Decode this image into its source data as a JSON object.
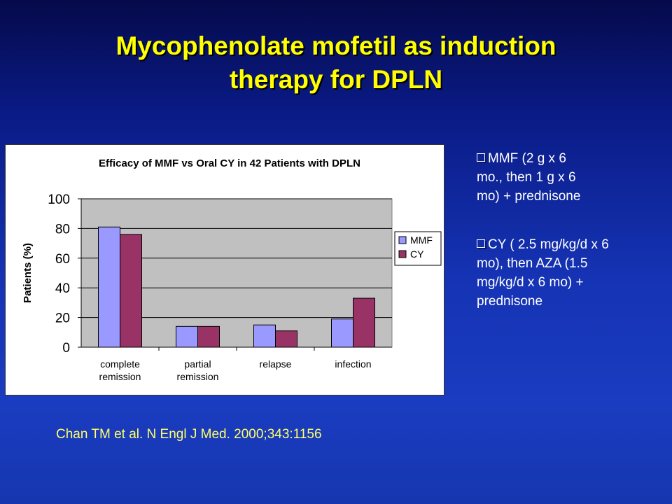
{
  "slide": {
    "title_line1": "Mycophenolate mofetil as induction",
    "title_line2": "therapy for DPLN",
    "citation": "Chan TM et al. N Engl J Med. 2000;343:1156"
  },
  "bullets": [
    {
      "lines": [
        "MMF (2 g x 6",
        "mo., then 1 g x 6",
        "mo) + prednisone"
      ]
    },
    {
      "lines": [
        "CY ( 2.5 mg/kg/d x 6",
        "mo), then AZA (1.5",
        "mg/kg/d x 6 mo) +",
        "prednisone"
      ]
    }
  ],
  "colors": {
    "mmf": "#9999ff",
    "cy": "#993366",
    "plot_bg": "#c0c0c0",
    "title": "#ffff00"
  },
  "chart_data": {
    "type": "bar",
    "title": "Efficacy of MMF vs Oral CY in 42 Patients with DPLN",
    "xlabel": "",
    "ylabel": "Patients (%)",
    "categories": [
      [
        "complete",
        "remission"
      ],
      [
        "partial",
        "remission"
      ],
      [
        "relapse"
      ],
      [
        "infection"
      ]
    ],
    "series": [
      {
        "name": "MMF",
        "values": [
          81,
          14,
          15,
          19
        ]
      },
      {
        "name": "CY",
        "values": [
          76,
          14,
          11,
          33
        ]
      }
    ],
    "ylim": [
      0,
      100
    ],
    "yticks": [
      0,
      20,
      40,
      60,
      80,
      100
    ],
    "grid": true,
    "legend": "right"
  }
}
